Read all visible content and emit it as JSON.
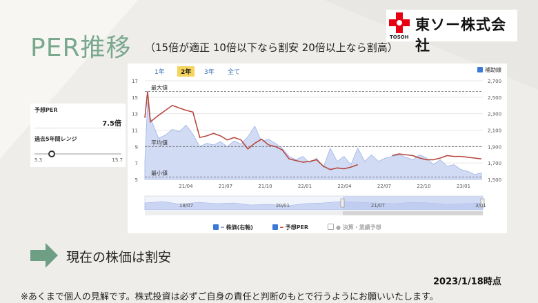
{
  "header": {
    "title": "PER推移",
    "subtitle": "（15倍が適正 10倍以下なら割安 20倍以上なら割高）",
    "logo_text": "東ソー株式会社",
    "logo_sub": "TOSOH"
  },
  "side_panel": {
    "per_label": "予想PER",
    "per_value": "7.5倍",
    "range_label": "過去5年間レンジ",
    "range_min": "5.3",
    "range_max": "15.7",
    "range_position": 0.2
  },
  "tabs": [
    {
      "label": "1年",
      "active": false
    },
    {
      "label": "2年",
      "active": true
    },
    {
      "label": "3年",
      "active": false
    },
    {
      "label": "全て",
      "active": false
    }
  ],
  "aux_lines_label": "補助線",
  "legend": [
    {
      "label": "株価(右軸)",
      "checked": true
    },
    {
      "label": "予想PER",
      "checked": true
    },
    {
      "label": "決算・業績予想",
      "checked": false
    }
  ],
  "footer": {
    "conclusion": "現在の株価は割安",
    "as_of": "2023/1/18時点",
    "note": "※あくまで個人の見解です。株式投資は必ずご自身の責任と判断のもとで行うようにお願いいたします。"
  },
  "colors": {
    "title_green": "#7aa88d",
    "per_line": "#b5483f",
    "price_area": "#9fb4e6",
    "tab_active": "#f6d35b",
    "logo_red": "#e60012"
  },
  "chart_data": {
    "type": "line",
    "left_axis": {
      "ylim": [
        5,
        17
      ],
      "ticks": [
        "5",
        "7",
        "9",
        "11",
        "13",
        "15",
        "17"
      ]
    },
    "right_axis": {
      "ylim": [
        1500,
        2700
      ],
      "ticks": [
        "1,500",
        "1,700",
        "1,900",
        "2,100",
        "2,300",
        "2,500",
        "2,700"
      ]
    },
    "x_ticks": [
      "21/04",
      "21/07",
      "21/10",
      "22/01",
      "22/04",
      "22/07",
      "22/10",
      "23/01"
    ],
    "x_range": [
      0,
      24.6
    ],
    "reference_lines": [
      {
        "label": "最大値",
        "value": 15.7
      },
      {
        "label": "平均値",
        "value": 9.0
      },
      {
        "label": "最小値",
        "value": 5.3
      }
    ],
    "navigator_ticks": [
      "18/07",
      "20/01",
      "21/07",
      "3/01"
    ],
    "series": [
      {
        "name": "株価(右軸)",
        "axis": "right",
        "x": [
          0,
          0.2,
          0.4,
          1,
          1.5,
          2,
          2.5,
          3,
          3.5,
          4,
          4.5,
          5,
          5.5,
          6,
          6.5,
          7,
          7.5,
          8,
          8.5,
          9,
          9.5,
          10,
          10.5,
          11,
          11.5,
          12,
          12.5,
          13,
          13.5,
          14,
          14.5,
          15,
          15.5,
          16,
          16.5,
          17,
          17.5,
          18,
          18.5,
          19,
          19.5,
          20,
          20.5,
          21,
          21.5,
          22,
          22.5,
          23,
          23.5,
          24,
          24.5
        ],
        "y": [
          1720,
          2440,
          2250,
          2000,
          2040,
          2110,
          2080,
          2160,
          2050,
          1900,
          1940,
          1920,
          1960,
          1900,
          1970,
          1930,
          2020,
          2150,
          1960,
          1990,
          1940,
          1880,
          1780,
          1740,
          1780,
          1700,
          1760,
          1650,
          1880,
          1720,
          1780,
          1680,
          1880,
          1720,
          1800,
          1720,
          1760,
          1780,
          1800,
          1770,
          1740,
          1800,
          1760,
          1680,
          1740,
          1660,
          1680,
          1620,
          1600,
          1560,
          1580
        ]
      },
      {
        "name": "予想PER",
        "axis": "left",
        "x": [
          0,
          0.2,
          0.4,
          1,
          1.5,
          2,
          2.5,
          3,
          3.5,
          4,
          4.5,
          5,
          5.5,
          6,
          6.5,
          7,
          7.5,
          8,
          8.5,
          9,
          9.5,
          10,
          10.5,
          11,
          11.5,
          12,
          12.5,
          13,
          13.5,
          14,
          14.5,
          15,
          15.5,
          16,
          16.5,
          17,
          17.5,
          18,
          18.5,
          19,
          19.5,
          20,
          20.5,
          21,
          21.5,
          22,
          22.5,
          23,
          23.5,
          24,
          24.5
        ],
        "y": [
          12.5,
          15.7,
          12.0,
          12.8,
          13.4,
          14.0,
          13.7,
          13.4,
          13.2,
          10.1,
          10.3,
          10.6,
          10.3,
          9.8,
          10.1,
          9.8,
          8.7,
          9.4,
          9.9,
          9.2,
          9.0,
          8.6,
          7.5,
          7.3,
          7.1,
          7.2,
          7.4,
          6.6,
          6.2,
          6.4,
          6.3,
          6.5,
          6.8,
          null,
          null,
          null,
          null,
          7.9,
          8.1,
          8.0,
          7.9,
          7.6,
          7.4,
          7.4,
          7.6,
          7.9,
          7.8,
          7.8,
          7.7,
          7.6,
          7.5
        ]
      }
    ]
  }
}
